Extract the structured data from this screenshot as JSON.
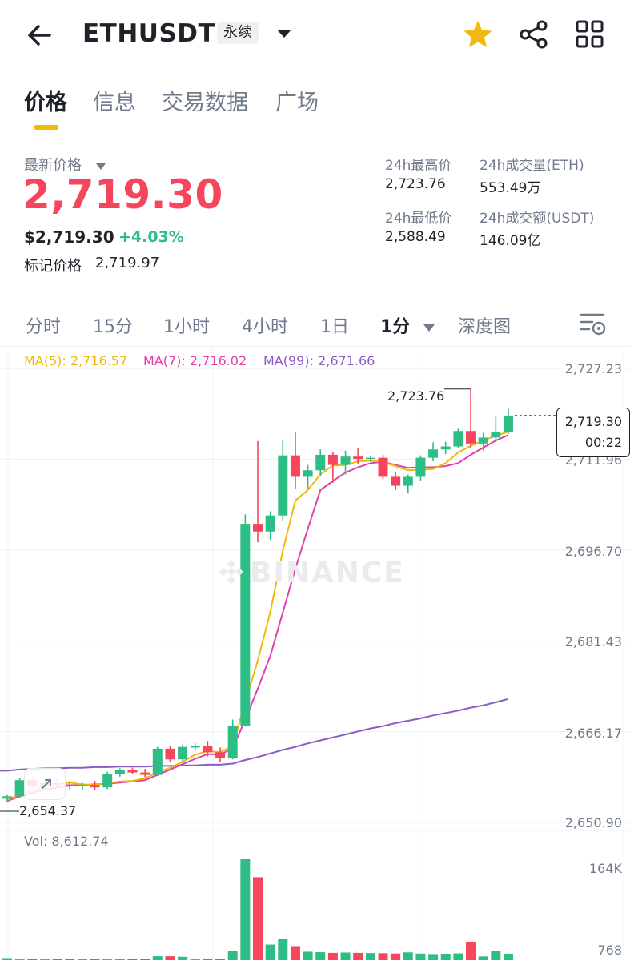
{
  "header": {
    "symbol": "ETHUSDT",
    "contract_type": "永续",
    "icons": [
      "back-arrow-icon",
      "chevron-down-icon",
      "star-icon",
      "share-icon",
      "grid-icon"
    ]
  },
  "tabs": [
    "价格",
    "信息",
    "交易数据",
    "广场"
  ],
  "price": {
    "latest_label": "最新价格",
    "last": "2,719.30",
    "usd": "$2,719.30",
    "change": "+4.03%",
    "mark_label": "标记价格",
    "mark": "2,719.97"
  },
  "stats": {
    "high_label": "24h最高价",
    "high": "2,723.76",
    "vol_eth_label": "24h成交量(ETH)",
    "vol_eth": "553.49万",
    "low_label": "24h最低价",
    "low": "2,588.49",
    "vol_usdt_label": "24h成交额(USDT)",
    "vol_usdt": "146.09亿"
  },
  "intervals": [
    "分时",
    "15分",
    "1小时",
    "4小时",
    "1日",
    "1分",
    "深度图"
  ],
  "chart": {
    "ma5": "MA(5): 2,716.57",
    "ma7": "MA(7): 2,716.02",
    "ma99": "MA(99): 2,671.66",
    "last_price": "2,719.30",
    "countdown": "00:22",
    "high_marker": "2,723.76",
    "low_marker": "2,654.37",
    "watermark": "BINANCE",
    "vol_label": "Vol: 8,612.74",
    "vol_axis": [
      "164K",
      "768"
    ],
    "price_axis": [
      "2,727.23",
      "2,711.96",
      "2,696.70",
      "2,681.43",
      "2,666.17",
      "2,650.90"
    ]
  },
  "colors": {
    "up": "#2ebd85",
    "down": "#f6465d",
    "ma5": "#f0b90b",
    "ma7": "#e040a8",
    "ma99": "#8a5cc4",
    "accent": "#f0b90b"
  },
  "chart_data": {
    "type": "candlestick",
    "interval": "1m",
    "ylim": [
      2650.9,
      2727.23
    ],
    "y_ticks": [
      2727.23,
      2711.96,
      2696.7,
      2681.43,
      2666.17,
      2650.9
    ],
    "candles": [
      {
        "o": 2654.9,
        "h": 2655.5,
        "l": 2654.4,
        "c": 2655.3
      },
      {
        "o": 2655.3,
        "h": 2658.4,
        "l": 2655.0,
        "c": 2658.0
      },
      {
        "o": 2658.0,
        "h": 2658.6,
        "l": 2656.8,
        "c": 2657.1
      },
      {
        "o": 2657.1,
        "h": 2657.8,
        "l": 2656.3,
        "c": 2657.5
      },
      {
        "o": 2657.5,
        "h": 2658.3,
        "l": 2656.6,
        "c": 2657.3
      },
      {
        "o": 2657.3,
        "h": 2657.9,
        "l": 2656.5,
        "c": 2657.0
      },
      {
        "o": 2657.0,
        "h": 2657.6,
        "l": 2656.4,
        "c": 2657.2
      },
      {
        "o": 2657.2,
        "h": 2657.9,
        "l": 2656.3,
        "c": 2656.8
      },
      {
        "o": 2656.8,
        "h": 2659.4,
        "l": 2656.5,
        "c": 2659.1
      },
      {
        "o": 2659.1,
        "h": 2660.0,
        "l": 2658.6,
        "c": 2659.7
      },
      {
        "o": 2659.7,
        "h": 2660.1,
        "l": 2659.0,
        "c": 2659.3
      },
      {
        "o": 2659.3,
        "h": 2659.9,
        "l": 2658.5,
        "c": 2658.9
      },
      {
        "o": 2658.9,
        "h": 2663.6,
        "l": 2658.7,
        "c": 2663.3
      },
      {
        "o": 2663.3,
        "h": 2663.8,
        "l": 2661.0,
        "c": 2661.5
      },
      {
        "o": 2661.5,
        "h": 2664.0,
        "l": 2660.9,
        "c": 2663.6
      },
      {
        "o": 2663.6,
        "h": 2664.2,
        "l": 2663.1,
        "c": 2663.7
      },
      {
        "o": 2663.7,
        "h": 2664.6,
        "l": 2662.0,
        "c": 2662.7
      },
      {
        "o": 2662.7,
        "h": 2663.5,
        "l": 2661.1,
        "c": 2661.8
      },
      {
        "o": 2661.8,
        "h": 2668.2,
        "l": 2661.5,
        "c": 2667.2
      },
      {
        "o": 2667.2,
        "h": 2702.7,
        "l": 2667.0,
        "c": 2701.1
      },
      {
        "o": 2701.1,
        "h": 2715.0,
        "l": 2698.0,
        "c": 2699.8
      },
      {
        "o": 2699.8,
        "h": 2703.2,
        "l": 2698.4,
        "c": 2702.5
      },
      {
        "o": 2702.5,
        "h": 2715.3,
        "l": 2701.6,
        "c": 2712.6
      },
      {
        "o": 2712.6,
        "h": 2716.5,
        "l": 2707.0,
        "c": 2709.0
      },
      {
        "o": 2709.0,
        "h": 2711.0,
        "l": 2707.0,
        "c": 2710.1
      },
      {
        "o": 2710.1,
        "h": 2713.6,
        "l": 2709.2,
        "c": 2712.7
      },
      {
        "o": 2712.7,
        "h": 2713.2,
        "l": 2708.0,
        "c": 2711.0
      },
      {
        "o": 2711.0,
        "h": 2713.4,
        "l": 2709.4,
        "c": 2712.4
      },
      {
        "o": 2712.4,
        "h": 2713.9,
        "l": 2711.2,
        "c": 2712.0
      },
      {
        "o": 2712.0,
        "h": 2712.5,
        "l": 2711.6,
        "c": 2712.2
      },
      {
        "o": 2712.2,
        "h": 2712.7,
        "l": 2708.6,
        "c": 2709.0
      },
      {
        "o": 2709.0,
        "h": 2709.8,
        "l": 2706.8,
        "c": 2707.5
      },
      {
        "o": 2707.5,
        "h": 2709.4,
        "l": 2706.2,
        "c": 2709.0
      },
      {
        "o": 2709.0,
        "h": 2712.6,
        "l": 2708.4,
        "c": 2712.2
      },
      {
        "o": 2712.2,
        "h": 2714.8,
        "l": 2711.6,
        "c": 2713.6
      },
      {
        "o": 2713.6,
        "h": 2714.9,
        "l": 2712.8,
        "c": 2714.1
      },
      {
        "o": 2714.1,
        "h": 2717.1,
        "l": 2713.8,
        "c": 2716.7
      },
      {
        "o": 2716.7,
        "h": 2723.76,
        "l": 2713.9,
        "c": 2714.6
      },
      {
        "o": 2714.6,
        "h": 2716.4,
        "l": 2713.4,
        "c": 2715.6
      },
      {
        "o": 2715.6,
        "h": 2719.1,
        "l": 2715.0,
        "c": 2716.6
      },
      {
        "o": 2716.6,
        "h": 2720.4,
        "l": 2716.2,
        "c": 2719.3
      }
    ],
    "volume": [
      1.2,
      0.6,
      0.5,
      0.4,
      0.4,
      0.3,
      0.3,
      0.3,
      0.4,
      0.3,
      0.3,
      0.3,
      2.3,
      2.3,
      2.0,
      0.5,
      0.3,
      0.3,
      5.4,
      59.6,
      49.0,
      9.2,
      12.6,
      8.3,
      5.0,
      4.7,
      4.3,
      4.5,
      4.3,
      4.2,
      4.1,
      3.9,
      4.6,
      3.9,
      3.6,
      3.8,
      4.0,
      10.9,
      2.2,
      5.2,
      3.8
    ],
    "ma5": [
      2654.7,
      2655.6,
      2656.3,
      2656.9,
      2657.3,
      2657.6,
      2657.3,
      2657.2,
      2657.5,
      2657.8,
      2657.9,
      2658.3,
      2659.3,
      2660.1,
      2661.1,
      2662.3,
      2662.9,
      2662.7,
      2663.8,
      2671.2,
      2678.1,
      2686.3,
      2696.6,
      2705.0,
      2706.8,
      2709.4,
      2710.9,
      2711.0,
      2711.6,
      2711.7,
      2711.5,
      2710.8,
      2710.1,
      2710.2,
      2710.3,
      2711.3,
      2713.1,
      2714.2,
      2715.1,
      2715.9,
      2716.57
    ],
    "ma7": [
      2654.5,
      2655.3,
      2655.9,
      2656.4,
      2656.8,
      2657.1,
      2657.2,
      2657.3,
      2657.4,
      2657.6,
      2657.8,
      2658.0,
      2658.9,
      2659.8,
      2660.7,
      2661.6,
      2662.4,
      2662.3,
      2663.4,
      2668.2,
      2673.4,
      2678.9,
      2686.2,
      2693.5,
      2700.3,
      2706.8,
      2708.3,
      2709.7,
      2710.6,
      2711.3,
      2711.5,
      2711.0,
      2710.5,
      2710.6,
      2710.6,
      2710.8,
      2711.3,
      2712.7,
      2713.9,
      2715.1,
      2716.02
    ],
    "ma99": [
      2659.6,
      2659.8,
      2659.9,
      2660.0,
      2660.0,
      2660.1,
      2660.1,
      2660.2,
      2660.2,
      2660.3,
      2660.3,
      2660.3,
      2660.4,
      2660.4,
      2660.5,
      2660.5,
      2660.6,
      2660.6,
      2660.8,
      2661.4,
      2661.9,
      2662.5,
      2663.1,
      2663.6,
      2664.2,
      2664.7,
      2665.2,
      2665.7,
      2666.2,
      2666.7,
      2667.1,
      2667.6,
      2668.0,
      2668.4,
      2668.9,
      2669.3,
      2669.7,
      2670.2,
      2670.6,
      2671.1,
      2671.66
    ]
  }
}
